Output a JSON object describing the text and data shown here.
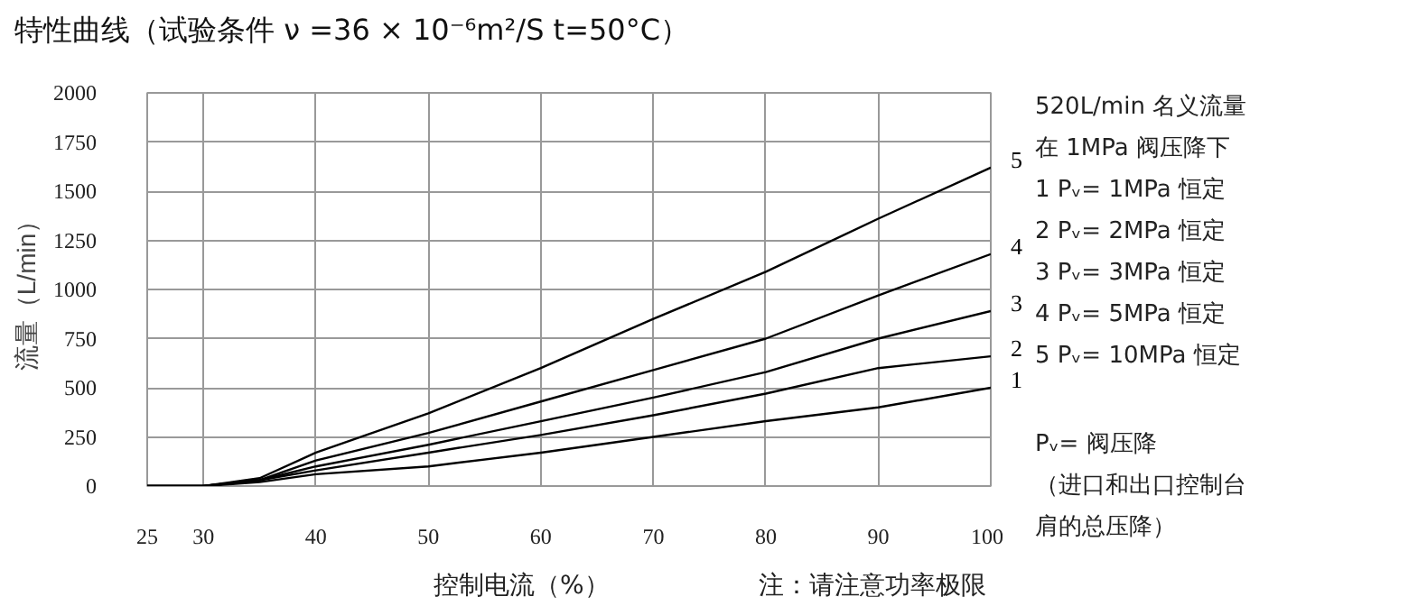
{
  "chart_data": {
    "type": "line",
    "title": "特性曲线（试验条件 ν =36 × 10⁻⁶m²/S  t=50°C）",
    "xlabel": "控制电流（%）",
    "ylabel": "流量（L/min）",
    "x": [
      25,
      30,
      35,
      40,
      50,
      60,
      70,
      80,
      90,
      100
    ],
    "series": [
      {
        "name": "1",
        "color": "#000000",
        "values": [
          0,
          0,
          20,
          60,
          100,
          170,
          250,
          330,
          400,
          500
        ]
      },
      {
        "name": "2",
        "color": "#000000",
        "values": [
          0,
          0,
          30,
          80,
          170,
          260,
          360,
          470,
          600,
          660
        ]
      },
      {
        "name": "3",
        "color": "#000000",
        "values": [
          0,
          0,
          30,
          100,
          210,
          330,
          450,
          580,
          750,
          890
        ]
      },
      {
        "name": "4",
        "color": "#000000",
        "values": [
          0,
          0,
          30,
          130,
          270,
          430,
          590,
          750,
          970,
          1180
        ]
      },
      {
        "name": "5",
        "color": "#000000",
        "values": [
          0,
          0,
          40,
          170,
          370,
          600,
          850,
          1090,
          1360,
          1620
        ]
      }
    ],
    "xlim": [
      25,
      100
    ],
    "ylim": [
      0,
      2000
    ],
    "xticks": [
      25,
      30,
      40,
      50,
      60,
      70,
      80,
      90,
      100
    ],
    "yticks": [
      0,
      250,
      500,
      750,
      1000,
      1250,
      1500,
      1750,
      2000
    ],
    "grid": true,
    "marker": "none",
    "line_style": "solid",
    "annotations": [
      "注：请注意功率极限",
      "520L/min 名义流量",
      "在 1MPa 阀压降下",
      "1   Pᵥ=  1MPa 恒定",
      "2   Pᵥ=  2MPa 恒定",
      "3   Pᵥ=  3MPa 恒定",
      "4   Pᵥ=  5MPa 恒定",
      "5   Pᵥ=  10MPa 恒定",
      "Pᵥ= 阀压降",
      "（进口和出口控制台",
      "肩的总压降）"
    ]
  }
}
